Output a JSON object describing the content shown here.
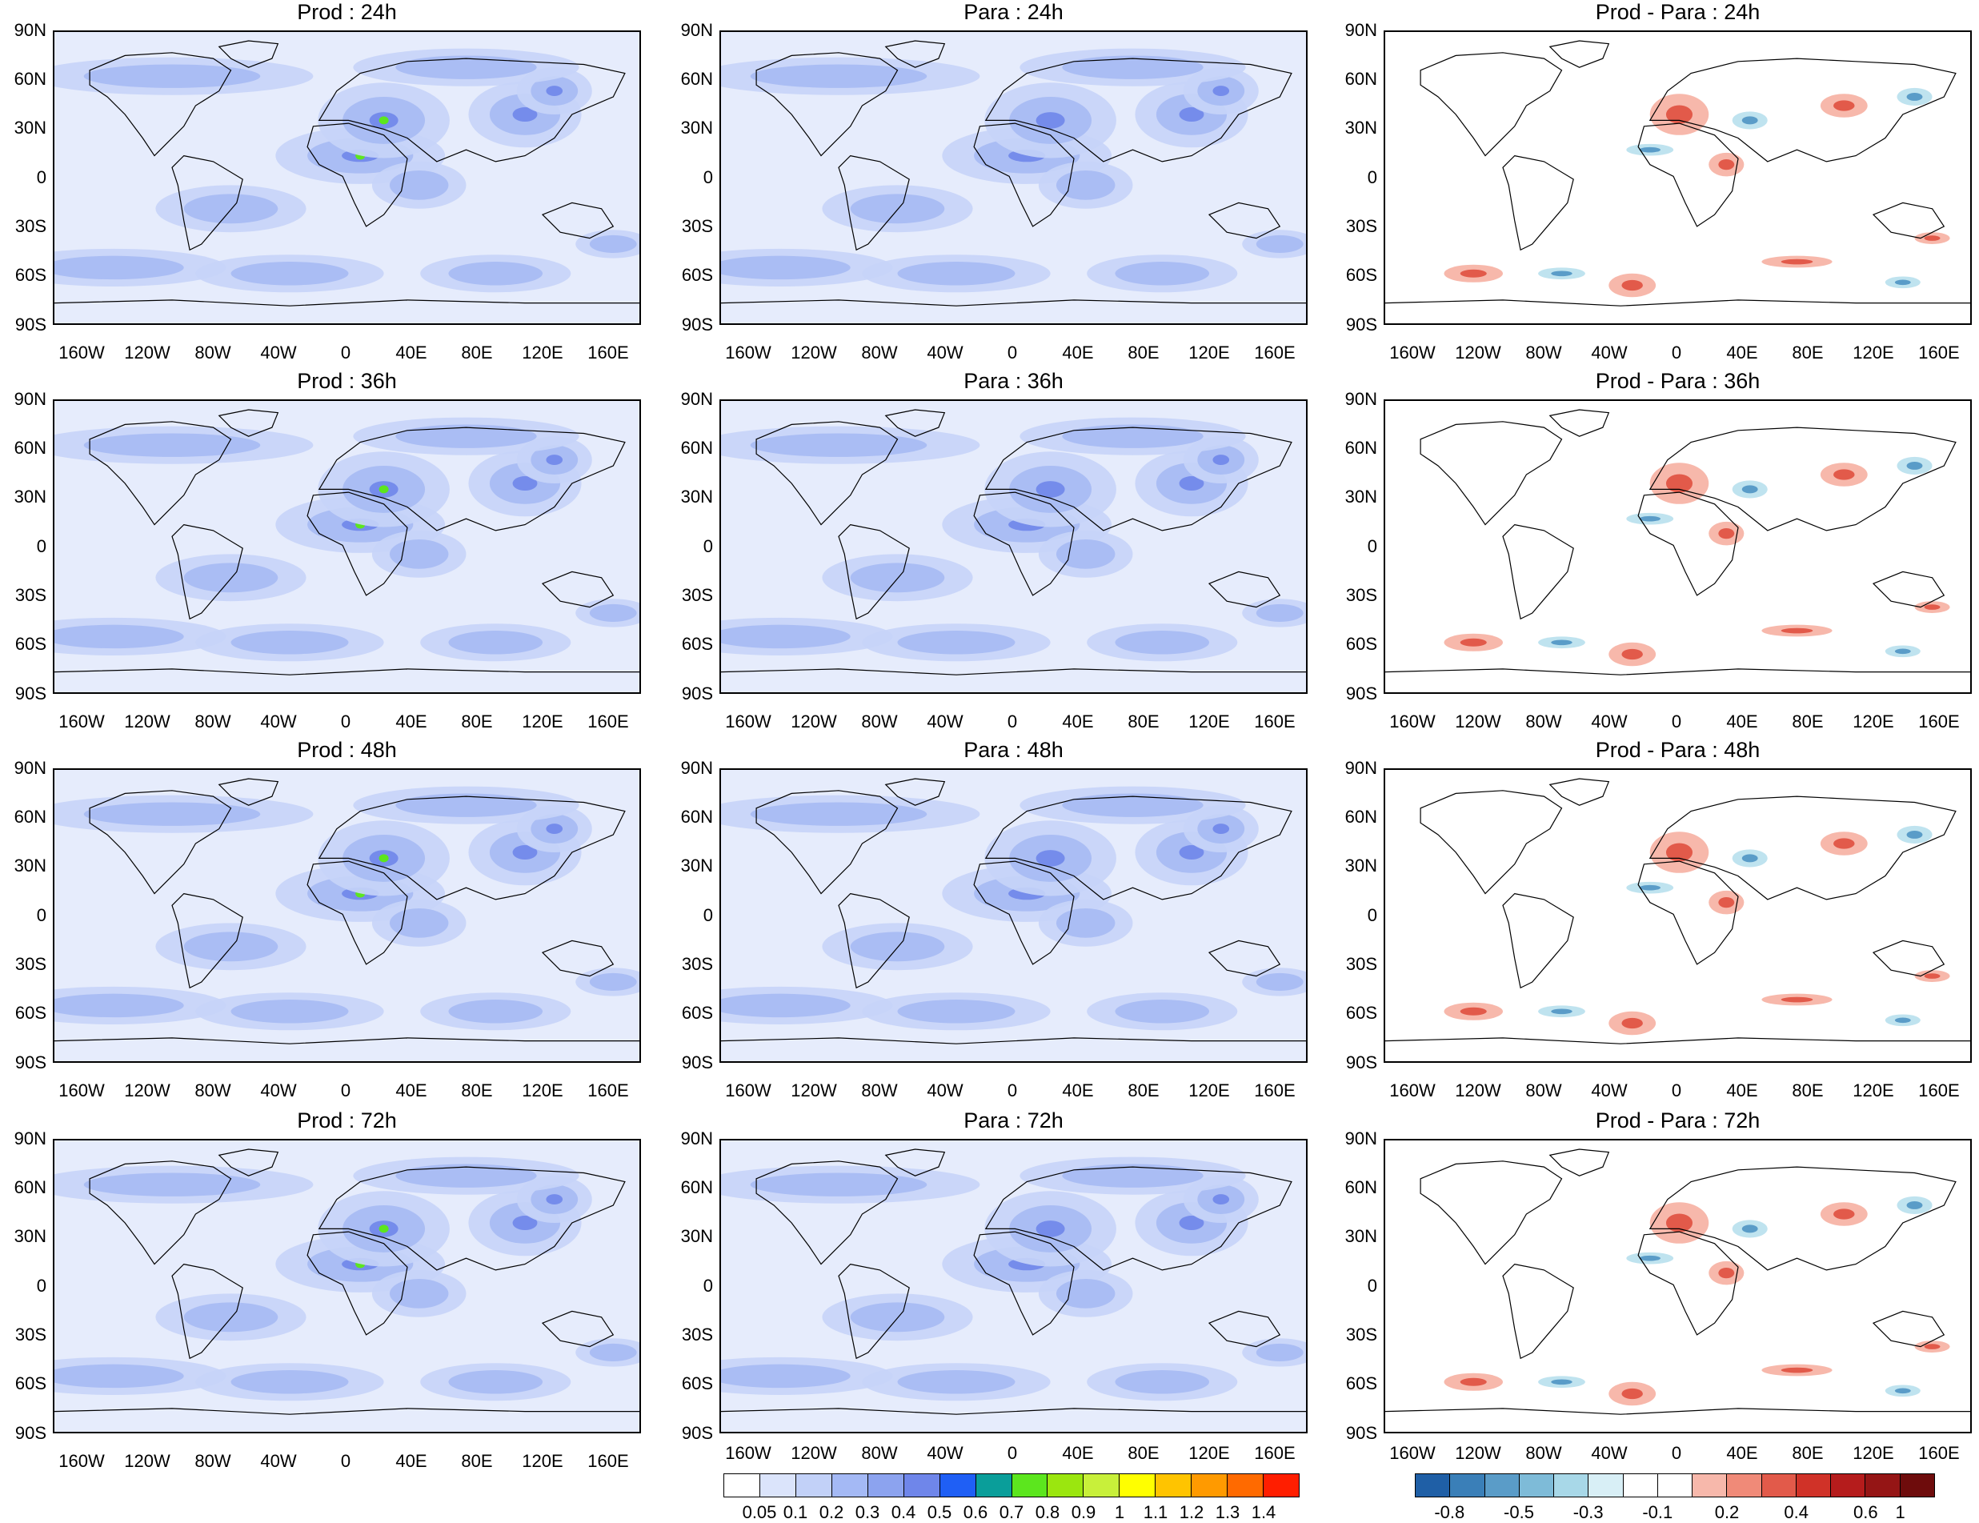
{
  "panels": [
    {
      "title": "Prod : 24h",
      "type": "prod"
    },
    {
      "title": "Para : 24h",
      "type": "para"
    },
    {
      "title": "Prod - Para : 24h",
      "type": "diff"
    },
    {
      "title": "Prod : 36h",
      "type": "prod"
    },
    {
      "title": "Para : 36h",
      "type": "para"
    },
    {
      "title": "Prod - Para : 36h",
      "type": "diff"
    },
    {
      "title": "Prod : 48h",
      "type": "prod"
    },
    {
      "title": "Para : 48h",
      "type": "para"
    },
    {
      "title": "Prod - Para : 48h",
      "type": "diff"
    },
    {
      "title": "Prod : 72h",
      "type": "prod"
    },
    {
      "title": "Para : 72h",
      "type": "para"
    },
    {
      "title": "Prod - Para : 72h",
      "type": "diff"
    }
  ],
  "lat_labels": [
    "90N",
    "60N",
    "30N",
    "0",
    "30S",
    "60S",
    "90S"
  ],
  "lon_labels": [
    "160W",
    "120W",
    "80W",
    "40W",
    "0",
    "40E",
    "80E",
    "120E",
    "160E"
  ],
  "colorbar_main": {
    "levels": [
      "0.05",
      "0.1",
      "0.2",
      "0.3",
      "0.4",
      "0.5",
      "0.6",
      "0.7",
      "0.8",
      "0.9",
      "1",
      "1.1",
      "1.2",
      "1.3",
      "1.4"
    ],
    "colors": [
      "#ffffff",
      "#dbe4fb",
      "#c2d1f8",
      "#a4b9f5",
      "#8ca3ef",
      "#6f86ea",
      "#1f5ff5",
      "#0a9e9a",
      "#5ce61e",
      "#9be60f",
      "#c8f03a",
      "#ffff00",
      "#ffc400",
      "#ff9a00",
      "#ff6a00",
      "#ff1e00"
    ]
  },
  "colorbar_diff": {
    "levels": [
      "-0.8",
      "-0.5",
      "-0.3",
      "-0.1",
      "0.2",
      "0.4",
      "0.6",
      "1"
    ],
    "colors": [
      "#1f5fa6",
      "#3a7fb8",
      "#5a9cc8",
      "#7ebbd8",
      "#a8d8e8",
      "#d8eff6",
      "#ffffff",
      "#ffffff",
      "#f7b8ab",
      "#f08a78",
      "#e25a4a",
      "#d03228",
      "#b51c1c",
      "#951515",
      "#6e0c0c"
    ]
  }
}
